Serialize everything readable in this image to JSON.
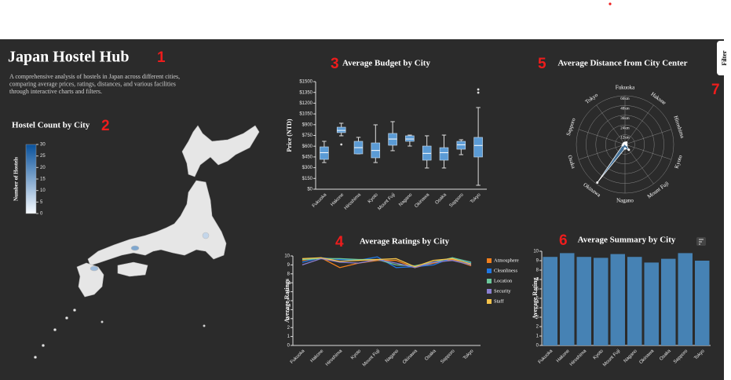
{
  "header": {
    "title": "Japan Hostel Hub",
    "annotation": "1",
    "description": [
      "A comprehensive analysis of hostels in Japan across different cities,",
      "comparing average prices, ratings, distances, and various facilities",
      "through interactive charts and filters."
    ]
  },
  "filter": {
    "label": "Filter",
    "annotation": "7"
  },
  "map": {
    "title": "Hostel Count by City",
    "annotation": "2",
    "legend_title": "Number of Hostels",
    "legend_range": [
      0,
      30
    ],
    "legend_ticks": [
      0,
      5,
      10,
      15,
      20,
      25,
      30
    ]
  },
  "budget": {
    "type": "box",
    "title": "Average Budget by City",
    "annotation": "3",
    "y_label": "Price (NTD)",
    "color": "#5b9bd5",
    "categories": [
      "Fukuoka",
      "Hakone",
      "Hiroshima",
      "Kyoto",
      "Mount Fuji",
      "Nagano",
      "Okinawa",
      "Osaka",
      "Sapporo",
      "Tokyo"
    ],
    "boxes": [
      {
        "min": 372,
        "q1": 416,
        "median": 510,
        "q3": 591,
        "max": 668,
        "outliers": []
      },
      {
        "min": 745,
        "q1": 789,
        "median": 820,
        "q3": 865,
        "max": 920,
        "outliers": [
          624
        ]
      },
      {
        "min": 493,
        "q1": 493,
        "median": 580,
        "q3": 668,
        "max": 723,
        "outliers": []
      },
      {
        "min": 372,
        "q1": 438,
        "median": 540,
        "q3": 646,
        "max": 898,
        "outliers": []
      },
      {
        "min": 537,
        "q1": 613,
        "median": 700,
        "q3": 778,
        "max": 942,
        "outliers": []
      },
      {
        "min": 602,
        "q1": 668,
        "median": 700,
        "q3": 745,
        "max": 755,
        "outliers": []
      },
      {
        "min": 296,
        "q1": 405,
        "median": 500,
        "q3": 602,
        "max": 745,
        "outliers": []
      },
      {
        "min": 296,
        "q1": 405,
        "median": 510,
        "q3": 580,
        "max": 755,
        "outliers": []
      },
      {
        "min": 482,
        "q1": 558,
        "median": 620,
        "q3": 668,
        "max": 690,
        "outliers": []
      },
      {
        "min": 55,
        "q1": 449,
        "median": 610,
        "q3": 723,
        "max": 1139,
        "outliers": [
          1347,
          1391
        ]
      }
    ],
    "ylim": [
      0,
      1500
    ],
    "yticks": [
      {
        "value": 0,
        "label": "$0"
      },
      {
        "value": 150,
        "label": "$150"
      },
      {
        "value": 300,
        "label": "$300"
      },
      {
        "value": 450,
        "label": "$450"
      },
      {
        "value": 600,
        "label": "$600"
      },
      {
        "value": 750,
        "label": "$750"
      },
      {
        "value": 900,
        "label": "$900"
      },
      {
        "value": 1050,
        "label": "$1050"
      },
      {
        "value": 1200,
        "label": "$1200"
      },
      {
        "value": 1350,
        "label": "$1350"
      },
      {
        "value": 1500,
        "label": "$1500"
      }
    ]
  },
  "ratings": {
    "type": "line",
    "title": "Average Ratings by City",
    "annotation": "4",
    "y_label": "Average Ratings",
    "categories": [
      "Fukuoka",
      "Hakone",
      "Hiroshima",
      "Kyoto",
      "Mount Fuji",
      "Nagano",
      "Okinawa",
      "Osaka",
      "Sapporo",
      "Tokyo"
    ],
    "series": [
      {
        "name": "Atmosphere",
        "color": "#f07f1d",
        "values": [
          9.5,
          9.8,
          8.7,
          9.2,
          9.5,
          9.5,
          8.7,
          9.2,
          9.6,
          8.9
        ]
      },
      {
        "name": "Cleanliness",
        "color": "#1f77e4",
        "values": [
          9.3,
          9.8,
          9.6,
          9.5,
          9.9,
          8.7,
          8.8,
          9.0,
          9.8,
          9.2
        ]
      },
      {
        "name": "Location",
        "color": "#6bc79a",
        "values": [
          9.6,
          9.7,
          9.7,
          9.6,
          9.6,
          9.0,
          8.9,
          9.3,
          9.8,
          9.3
        ]
      },
      {
        "name": "Security",
        "color": "#8a7fd0",
        "values": [
          9.0,
          9.7,
          9.3,
          9.2,
          9.6,
          9.2,
          8.7,
          9.3,
          9.5,
          9.0
        ]
      },
      {
        "name": "Staff",
        "color": "#f5c34a",
        "values": [
          9.7,
          9.8,
          9.4,
          9.5,
          9.6,
          9.7,
          8.8,
          9.5,
          9.7,
          9.1
        ]
      }
    ],
    "ylim": [
      0,
      10
    ],
    "yticks": [
      0,
      1,
      2,
      3,
      4,
      5,
      6,
      7,
      8,
      9,
      10
    ]
  },
  "distance": {
    "type": "radar",
    "title": "Average Distance from City Center",
    "annotation": "5",
    "color": "#4682b4",
    "categories": [
      "Fukuoka",
      "Hakone",
      "Hiroshima",
      "Kyoto",
      "Mount Fuji",
      "Nagano",
      "Okinawa",
      "Osaka",
      "Sapporo",
      "Tokyo"
    ],
    "values": [
      2,
      3,
      1,
      2,
      8,
      5,
      58,
      3,
      2,
      2
    ],
    "rlim": [
      0,
      60
    ],
    "rticks": [
      {
        "value": 12,
        "label": "12km"
      },
      {
        "value": 24,
        "label": "24km"
      },
      {
        "value": 36,
        "label": "36km"
      },
      {
        "value": 48,
        "label": "48km"
      },
      {
        "value": 60,
        "label": "60km"
      }
    ]
  },
  "summary": {
    "type": "bar",
    "title": "Average Summary by City",
    "annotation": "6",
    "y_label": "Average Rating",
    "color": "#4682b4",
    "categories": [
      "Fukuoka",
      "Hakone",
      "Hiroshima",
      "Kyoto",
      "Mount Fuji",
      "Nagano",
      "Okinawa",
      "Osaka",
      "Sapporo",
      "Tokyo"
    ],
    "values": [
      9.4,
      9.8,
      9.4,
      9.3,
      9.7,
      9.4,
      8.8,
      9.2,
      9.8,
      9.0
    ],
    "ylim": [
      0,
      10
    ],
    "yticks": [
      0,
      1,
      2,
      3,
      4,
      5,
      6,
      7,
      8,
      9,
      10
    ]
  }
}
